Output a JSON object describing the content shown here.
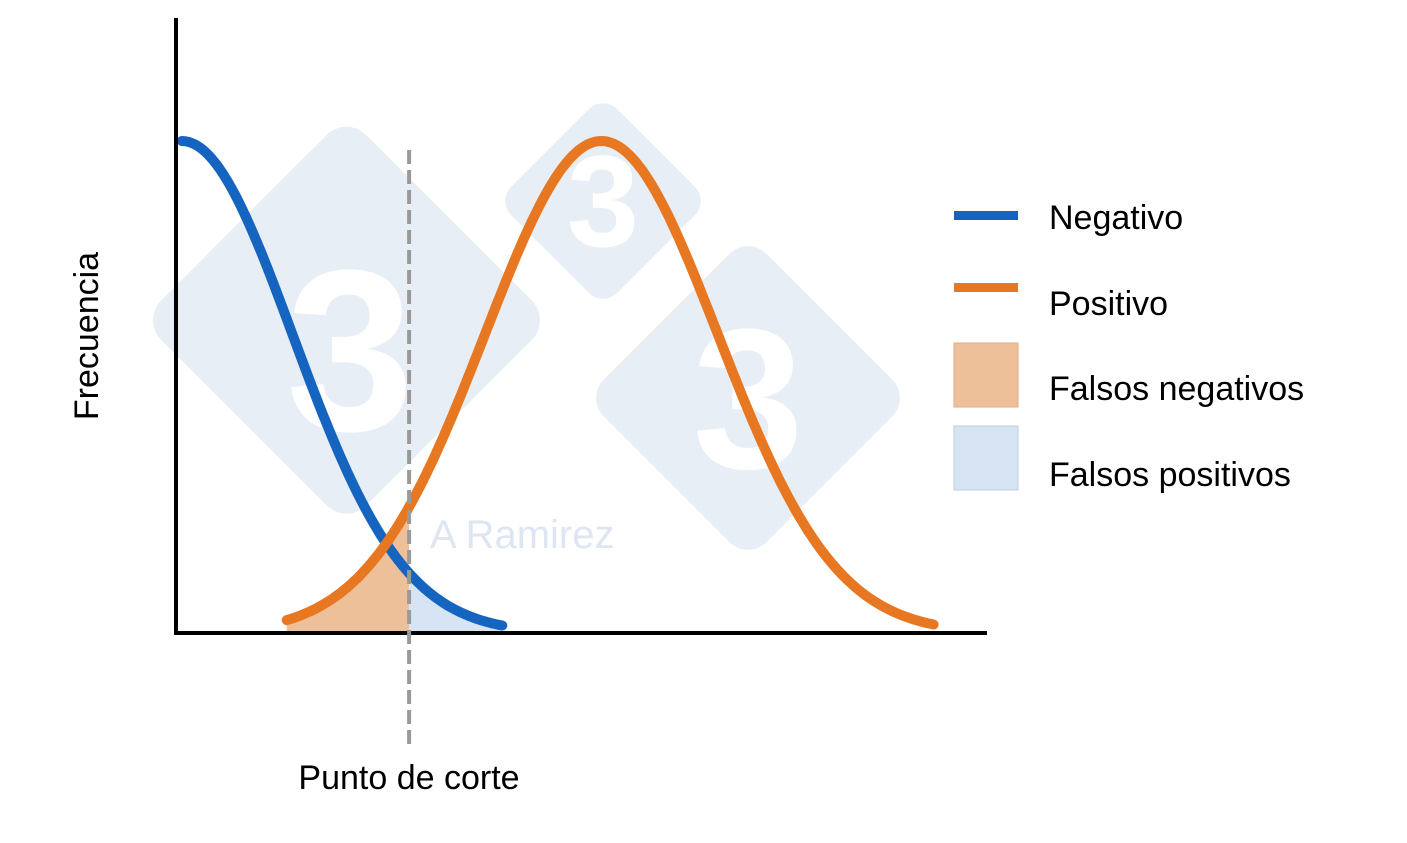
{
  "chart_data": {
    "type": "line",
    "title": "",
    "xlabel": "Punto de corte",
    "ylabel": "Frecuencia",
    "grid": false,
    "legend_position": "right",
    "series": [
      {
        "name": "Negativo",
        "color": "#1565c0",
        "shape": "half-gaussian",
        "mean": 0.0,
        "sd": 0.95,
        "x_start": 0.0,
        "x_end": 2.75
      },
      {
        "name": "Positivo",
        "color": "#e87722",
        "shape": "gaussian",
        "mean": 3.6,
        "sd": 1.0,
        "x_start": 0.9,
        "x_end": 6.45
      }
    ],
    "cutoff": 1.95,
    "shaded_regions": [
      {
        "name": "Falsos negativos",
        "color": "#edc09a",
        "series": "Positivo",
        "from": 0.9,
        "to": 1.95
      },
      {
        "name": "Falsos positivos",
        "color": "#d6e4f3",
        "series": "Negativo",
        "from": 1.95,
        "to": 2.75
      }
    ],
    "xlim": [
      -0.05,
      6.9
    ],
    "ylim": [
      0,
      1.25
    ]
  },
  "legend": {
    "items": [
      {
        "label": "Negativo",
        "kind": "line",
        "color": "#1565c0"
      },
      {
        "label": "Positivo",
        "kind": "line",
        "color": "#e87722"
      },
      {
        "label": "Falsos negativos",
        "kind": "box",
        "color": "#edc09a"
      },
      {
        "label": "Falsos positivos",
        "kind": "box",
        "color": "#d6e4f3"
      }
    ]
  },
  "watermark": {
    "text": "A Ramirez",
    "logo_glyph": "3",
    "color": "#e8eef6"
  }
}
